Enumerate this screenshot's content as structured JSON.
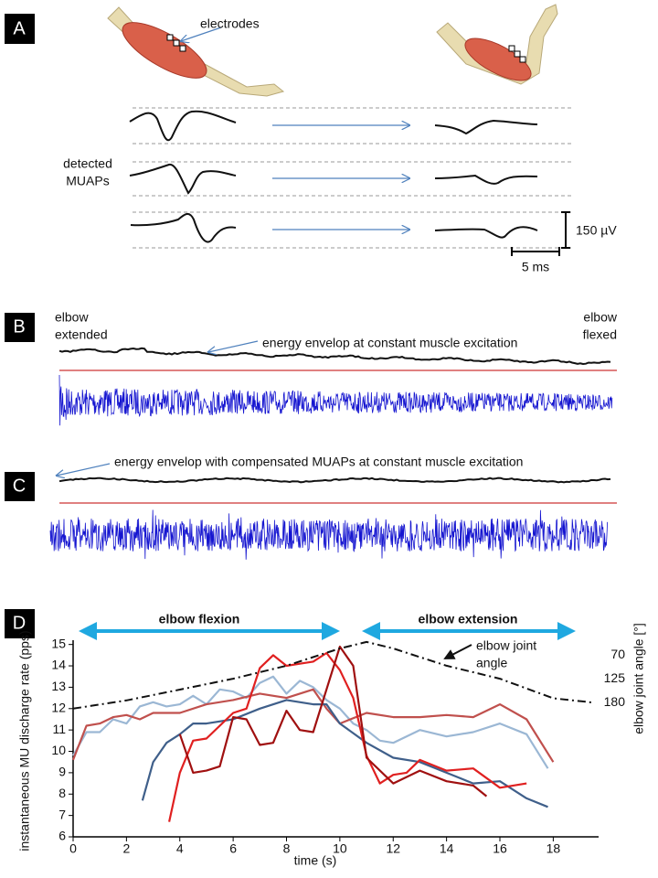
{
  "panels": {
    "a": {
      "label": "A",
      "electrodes": "electrodes",
      "detected": [
        "detected",
        "MUAPs"
      ],
      "amp_scale": "150 µV",
      "time_scale": "5 ms"
    },
    "b": {
      "label": "B",
      "left": [
        "elbow",
        "extended"
      ],
      "right": [
        "elbow",
        "flexed"
      ],
      "note": "energy envelop at constant muscle excitation"
    },
    "c": {
      "label": "C",
      "note": "energy envelop with compensated MUAPs at constant muscle excitation"
    },
    "d": {
      "label": "D"
    }
  },
  "chart_data": {
    "type": "line",
    "xlabel": "time (s)",
    "ylabel": "instantaneous MU discharge rate (pps)",
    "y2label": "elbow joint angle [°]",
    "annotations": {
      "flexion": "elbow flexion",
      "extension": "elbow extension",
      "angle": [
        "elbow joint",
        "angle"
      ]
    },
    "xlim": [
      0,
      19.7
    ],
    "xticks": [
      0,
      2,
      4,
      6,
      8,
      10,
      12,
      14,
      16,
      18
    ],
    "ylim": [
      6,
      15.2
    ],
    "yticks": [
      6,
      7,
      8,
      9,
      10,
      11,
      12,
      13,
      14,
      15
    ],
    "y2lim": [
      490,
      36
    ],
    "y2ticks": [
      70,
      125,
      180
    ],
    "series": [
      {
        "color": "#9bb7d4",
        "x": [
          0,
          0.5,
          1,
          1.5,
          2,
          2.5,
          3,
          3.5,
          4,
          4.5,
          5,
          5.5,
          6,
          6.5,
          7,
          7.5,
          8,
          8.5,
          9,
          9.5,
          10,
          10.5,
          11,
          11.5,
          12,
          13,
          14,
          15,
          16,
          17,
          17.8
        ],
        "values": [
          9.8,
          10.9,
          10.9,
          11.5,
          11.3,
          12.1,
          12.3,
          12.1,
          12.2,
          12.6,
          12.2,
          12.9,
          12.8,
          12.5,
          13.2,
          13.5,
          12.7,
          13.3,
          13.0,
          12.4,
          12.0,
          11.3,
          11.0,
          10.5,
          10.4,
          11.0,
          10.7,
          10.9,
          11.3,
          10.8,
          9.2
        ]
      },
      {
        "color": "#c0504d",
        "x": [
          0,
          0.5,
          1,
          1.5,
          2,
          2.5,
          3,
          4,
          5,
          6,
          7,
          8,
          9,
          9.5,
          10,
          11,
          12,
          13,
          14,
          15,
          16,
          17,
          18
        ],
        "values": [
          9.6,
          11.2,
          11.3,
          11.6,
          11.7,
          11.5,
          11.8,
          11.8,
          12.2,
          12.4,
          12.7,
          12.5,
          12.9,
          12.0,
          11.3,
          11.8,
          11.6,
          11.6,
          11.7,
          11.6,
          12.2,
          11.5,
          9.5
        ]
      },
      {
        "color": "#3f5f8a",
        "x": [
          2.6,
          3,
          3.5,
          4,
          4.5,
          5,
          6,
          7,
          8,
          9,
          9.5,
          10,
          11,
          12,
          13,
          14,
          15,
          16,
          17,
          17.8
        ],
        "values": [
          7.7,
          9.5,
          10.4,
          10.8,
          11.3,
          11.3,
          11.5,
          12.0,
          12.4,
          12.2,
          12.2,
          11.3,
          10.4,
          9.7,
          9.5,
          9.0,
          8.5,
          8.6,
          7.8,
          7.4
        ]
      },
      {
        "color": "#e02020",
        "x": [
          3.6,
          4,
          4.5,
          5,
          6,
          6.5,
          7,
          7.5,
          8,
          8.5,
          9,
          9.5,
          10,
          10.5,
          11,
          11.5,
          12,
          12.5,
          13,
          14,
          15,
          16,
          17
        ],
        "values": [
          6.7,
          9.0,
          10.5,
          10.6,
          11.8,
          12.0,
          13.9,
          14.5,
          14.0,
          14.1,
          14.2,
          14.6,
          13.8,
          12.5,
          9.8,
          8.5,
          8.9,
          9.0,
          9.6,
          9.1,
          9.2,
          8.3,
          8.5
        ]
      },
      {
        "color": "#a01010",
        "x": [
          4,
          4.5,
          5,
          5.5,
          6,
          6.5,
          7,
          7.5,
          8,
          8.5,
          9,
          10,
          10.5,
          11,
          12,
          13,
          14,
          15,
          15.5
        ],
        "values": [
          10.8,
          9.0,
          9.1,
          9.3,
          11.6,
          11.5,
          10.3,
          10.4,
          11.9,
          11.0,
          10.9,
          14.9,
          14.0,
          9.7,
          8.5,
          9.1,
          8.6,
          8.4,
          7.9
        ]
      },
      {
        "color": "#111111",
        "axis": "y2",
        "x": [
          0,
          2,
          4,
          6,
          8,
          10,
          11,
          12,
          14,
          16,
          18,
          19.5
        ],
        "values": [
          194,
          175,
          150,
          125,
          95,
          55,
          40,
          55,
          95,
          125,
          170,
          180
        ]
      }
    ]
  }
}
